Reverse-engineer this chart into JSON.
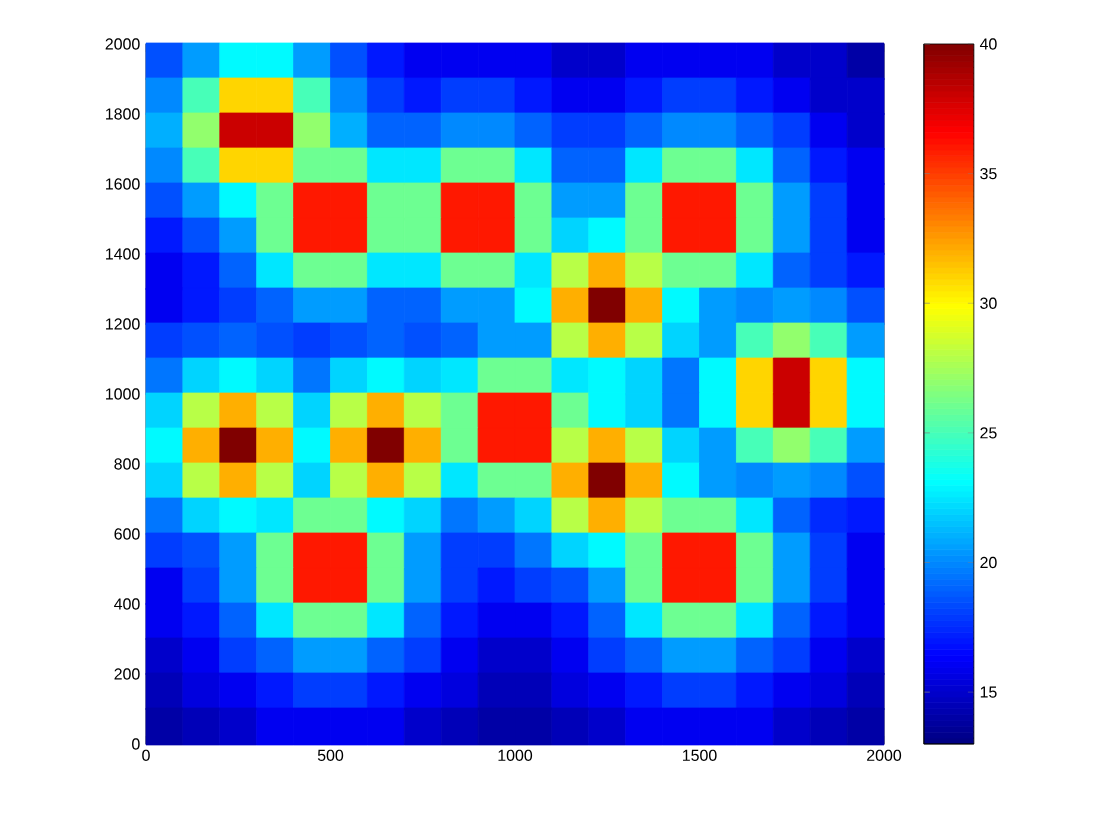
{
  "chart_data": {
    "type": "scatter",
    "marker": "square",
    "xlim": [
      0,
      2000
    ],
    "ylim": [
      0,
      2000
    ],
    "xticks": [
      0,
      500,
      1000,
      1500,
      2000
    ],
    "yticks": [
      0,
      200,
      400,
      600,
      800,
      1000,
      1200,
      1400,
      1600,
      1800,
      2000
    ],
    "clim": [
      13,
      40
    ],
    "cticks": [
      15,
      20,
      25,
      30,
      35,
      40
    ],
    "x": [
      50,
      150,
      250,
      350,
      450,
      550,
      650,
      750,
      850,
      950,
      1050,
      1150,
      1250,
      1350,
      1450,
      1550,
      1650,
      1750,
      1850,
      1950,
      50,
      150,
      250,
      350,
      450,
      550,
      650,
      750,
      850,
      950,
      1050,
      1150,
      1250,
      1350,
      1450,
      1550,
      1650,
      1750,
      1850,
      1950,
      50,
      150,
      250,
      350,
      450,
      550,
      650,
      750,
      850,
      950,
      1050,
      1150,
      1250,
      1350,
      1450,
      1550,
      1650,
      1750,
      1850,
      1950,
      50,
      150,
      250,
      350,
      450,
      550,
      650,
      750,
      850,
      950,
      1050,
      1150,
      1250,
      1350,
      1450,
      1550,
      1650,
      1750,
      1850,
      1950,
      50,
      150,
      250,
      350,
      450,
      550,
      650,
      750,
      850,
      950,
      1050,
      1150,
      1250,
      1350,
      1450,
      1550,
      1650,
      1750,
      1850,
      1950,
      50,
      150,
      250,
      350,
      450,
      550,
      650,
      750,
      850,
      950,
      1050,
      1150,
      1250,
      1350,
      1450,
      1550,
      1650,
      1750,
      1850,
      1950,
      50,
      150,
      250,
      350,
      450,
      550,
      650,
      750,
      850,
      950,
      1050,
      1150,
      1250,
      1350,
      1450,
      1550,
      1650,
      1750,
      1850,
      1950,
      50,
      150,
      250,
      350,
      450,
      550,
      650,
      750,
      850,
      950,
      1050,
      1150,
      1250,
      1350,
      1450,
      1550,
      1650,
      1750,
      1850,
      1950,
      50,
      150,
      250,
      350,
      450,
      550,
      650,
      750,
      850,
      950,
      1050,
      1150,
      1250,
      1350,
      1450,
      1550,
      1650,
      1750,
      1850,
      1950,
      50,
      150,
      250,
      350,
      450,
      550,
      650,
      750,
      850,
      950,
      1050,
      1150,
      1250,
      1350,
      1450,
      1550,
      1650,
      1750,
      1850,
      1950,
      50,
      150,
      250,
      350,
      450,
      550,
      650,
      750,
      850,
      950,
      1050,
      1150,
      1250,
      1350,
      1450,
      1550,
      1650,
      1750,
      1850,
      1950,
      50,
      150,
      250,
      350,
      450,
      550,
      650,
      750,
      850,
      950,
      1050,
      1150,
      1250,
      1350,
      1450,
      1550,
      1650,
      1750,
      1850,
      1950,
      50,
      150,
      250,
      350,
      450,
      550,
      650,
      750,
      850,
      950,
      1050,
      1150,
      1250,
      1350,
      1450,
      1550,
      1650,
      1750,
      1850,
      1950,
      50,
      150,
      250,
      350,
      450,
      550,
      650,
      750,
      850,
      950,
      1050,
      1150,
      1250,
      1350,
      1450,
      1550,
      1650,
      1750,
      1850,
      1950,
      50,
      150,
      250,
      350,
      450,
      550,
      650,
      750,
      850,
      950,
      1050,
      1150,
      1250,
      1350,
      1450,
      1550,
      1650,
      1750,
      1850,
      1950,
      50,
      150,
      250,
      350,
      450,
      550,
      650,
      750,
      850,
      950,
      1050,
      1150,
      1250,
      1350,
      1450,
      1550,
      1650,
      1750,
      1850,
      1950,
      50,
      150,
      250,
      350,
      450,
      550,
      650,
      750,
      850,
      950,
      1050,
      1150,
      1250,
      1350,
      1450,
      1550,
      1650,
      1750,
      1850,
      1950,
      50,
      150,
      250,
      350,
      450,
      550,
      650,
      750,
      850,
      950,
      1050,
      1150,
      1250,
      1350,
      1450,
      1550,
      1650,
      1750,
      1850,
      1950,
      50,
      150,
      250,
      350,
      450,
      550,
      650,
      750,
      850,
      950,
      1050,
      1150,
      1250,
      1350,
      1450,
      1550,
      1650,
      1750,
      1850,
      1950,
      50,
      150,
      250,
      350,
      450,
      550,
      650,
      750,
      850,
      950,
      1050,
      1150,
      1250,
      1350,
      1450,
      1550,
      1650,
      1750,
      1850,
      1950
    ],
    "values": [
      1950,
      1950,
      1950,
      1950,
      1950,
      1950,
      1950,
      1950,
      1950,
      1950,
      1950,
      1950,
      1950,
      1950,
      1950,
      1950,
      1950,
      1950,
      1950,
      1950,
      1850,
      1850,
      1850,
      1850,
      1850,
      1850,
      1850,
      1850,
      1850,
      1850,
      1850,
      1850,
      1850,
      1850,
      1850,
      1850,
      1850,
      1850,
      1850,
      1850,
      1750,
      1750,
      1750,
      1750,
      1750,
      1750,
      1750,
      1750,
      1750,
      1750,
      1750,
      1750,
      1750,
      1750,
      1750,
      1750,
      1750,
      1750,
      1750,
      1750,
      1650,
      1650,
      1650,
      1650,
      1650,
      1650,
      1650,
      1650,
      1650,
      1650,
      1650,
      1650,
      1650,
      1650,
      1650,
      1650,
      1650,
      1650,
      1650,
      1650,
      1550,
      1550,
      1550,
      1550,
      1550,
      1550,
      1550,
      1550,
      1550,
      1550,
      1550,
      1550,
      1550,
      1550,
      1550,
      1550,
      1550,
      1550,
      1550,
      1550,
      1450,
      1450,
      1450,
      1450,
      1450,
      1450,
      1450,
      1450,
      1450,
      1450,
      1450,
      1450,
      1450,
      1450,
      1450,
      1450,
      1450,
      1450,
      1450,
      1450,
      1350,
      1350,
      1350,
      1350,
      1350,
      1350,
      1350,
      1350,
      1350,
      1350,
      1350,
      1350,
      1350,
      1350,
      1350,
      1350,
      1350,
      1350,
      1350,
      1350,
      1250,
      1250,
      1250,
      1250,
      1250,
      1250,
      1250,
      1250,
      1250,
      1250,
      1250,
      1250,
      1250,
      1250,
      1250,
      1250,
      1250,
      1250,
      1250,
      1250,
      1150,
      1150,
      1150,
      1150,
      1150,
      1150,
      1150,
      1150,
      1150,
      1150,
      1150,
      1150,
      1150,
      1150,
      1150,
      1150,
      1150,
      1150,
      1150,
      1150,
      1050,
      1050,
      1050,
      1050,
      1050,
      1050,
      1050,
      1050,
      1050,
      1050,
      1050,
      1050,
      1050,
      1050,
      1050,
      1050,
      1050,
      1050,
      1050,
      1050,
      950,
      950,
      950,
      950,
      950,
      950,
      950,
      950,
      950,
      950,
      950,
      950,
      950,
      950,
      950,
      950,
      950,
      950,
      950,
      950,
      850,
      850,
      850,
      850,
      850,
      850,
      850,
      850,
      850,
      850,
      850,
      850,
      850,
      850,
      850,
      850,
      850,
      850,
      850,
      850,
      750,
      750,
      750,
      750,
      750,
      750,
      750,
      750,
      750,
      750,
      750,
      750,
      750,
      750,
      750,
      750,
      750,
      750,
      750,
      750,
      650,
      650,
      650,
      650,
      650,
      650,
      650,
      650,
      650,
      650,
      650,
      650,
      650,
      650,
      650,
      650,
      650,
      650,
      650,
      650,
      550,
      550,
      550,
      550,
      550,
      550,
      550,
      550,
      550,
      550,
      550,
      550,
      550,
      550,
      550,
      550,
      550,
      550,
      550,
      550,
      450,
      450,
      450,
      450,
      450,
      450,
      450,
      450,
      450,
      450,
      450,
      450,
      450,
      450,
      450,
      450,
      450,
      450,
      450,
      450,
      350,
      350,
      350,
      350,
      350,
      350,
      350,
      350,
      350,
      350,
      350,
      350,
      350,
      350,
      350,
      350,
      350,
      350,
      350,
      350,
      250,
      250,
      250,
      250,
      250,
      250,
      250,
      250,
      250,
      250,
      250,
      250,
      250,
      250,
      250,
      250,
      250,
      250,
      250,
      250,
      150,
      150,
      150,
      150,
      150,
      150,
      150,
      150,
      150,
      150,
      150,
      150,
      150,
      150,
      150,
      150,
      150,
      150,
      150,
      150,
      50,
      50,
      50,
      50,
      50,
      50,
      50,
      50,
      50,
      50,
      50,
      50,
      50,
      50,
      50,
      50,
      50,
      50,
      50,
      50
    ],
    "cvalues": [
      18.5,
      20.5,
      23,
      23,
      20.5,
      18.5,
      17,
      16,
      16,
      16,
      16,
      15,
      15,
      16,
      16,
      16,
      16,
      15,
      15,
      14,
      20,
      25,
      31,
      31,
      25,
      20,
      18,
      17,
      18,
      18,
      17,
      16,
      16,
      17,
      18,
      18,
      17,
      16,
      15,
      15,
      21,
      27,
      38,
      38,
      27,
      21,
      19,
      19,
      20,
      20,
      19,
      18,
      18,
      19,
      20,
      20,
      19,
      18,
      16,
      15,
      20,
      25,
      31,
      31,
      26,
      26,
      22.5,
      22.5,
      26,
      26,
      22.5,
      19,
      19,
      22.5,
      26,
      26,
      22.5,
      19,
      17,
      16,
      18.5,
      20.5,
      23,
      26,
      36,
      36,
      26,
      26,
      36,
      36,
      26,
      20.5,
      20.5,
      26,
      36,
      36,
      26,
      20.5,
      18,
      16,
      17,
      18.5,
      20.5,
      26,
      36,
      36,
      26,
      26,
      36,
      36,
      26,
      22,
      23,
      26,
      36,
      36,
      26,
      20.5,
      18,
      16,
      16,
      17,
      19,
      22.5,
      26,
      26,
      22.5,
      22.5,
      26,
      26,
      22.5,
      28,
      32,
      28,
      26,
      26,
      22.5,
      19,
      18,
      17,
      16,
      17,
      18,
      19,
      20.5,
      20.5,
      19,
      19,
      20.5,
      20.5,
      23,
      32,
      40,
      32,
      23,
      20.5,
      20,
      20.5,
      20,
      18.5,
      18,
      18.5,
      19,
      18.5,
      18,
      18.5,
      19,
      18.5,
      19,
      20.5,
      20.5,
      28,
      32,
      28,
      22,
      20.5,
      25,
      27,
      25,
      20.5,
      19.5,
      22,
      23,
      22,
      19.5,
      22,
      23,
      22,
      22.5,
      26,
      26,
      22.5,
      23,
      22,
      19.5,
      23,
      31,
      38,
      31,
      23,
      22,
      28,
      32,
      28,
      22,
      28,
      32,
      28,
      26,
      36,
      36,
      26,
      23,
      22,
      19.5,
      23,
      31,
      38,
      31,
      23,
      23,
      32,
      40,
      32,
      23,
      32,
      40,
      32,
      26,
      36,
      36,
      28,
      32,
      28,
      22,
      20.5,
      25,
      27,
      25,
      20.5,
      22,
      28,
      32,
      28,
      22,
      28,
      32,
      28,
      22.5,
      26,
      26,
      32,
      40,
      32,
      23,
      20.5,
      20,
      20.5,
      20,
      18.5,
      19.5,
      22,
      23,
      22.5,
      26,
      26,
      23,
      22,
      19.5,
      20.5,
      22,
      28,
      32,
      28,
      26,
      26,
      22.5,
      19,
      17.5,
      17,
      18,
      18.5,
      20.5,
      26,
      36,
      36,
      26,
      20.5,
      18,
      18,
      19.5,
      22,
      23,
      26,
      36,
      36,
      26,
      20.5,
      18,
      16,
      16,
      18,
      20.5,
      26,
      36,
      36,
      26,
      20.5,
      18,
      17,
      18,
      18.5,
      20.5,
      26,
      36,
      36,
      26,
      20.5,
      18,
      16,
      16,
      17,
      19,
      22.5,
      26,
      26,
      22.5,
      19,
      17,
      16,
      16,
      17,
      19,
      22.5,
      26,
      26,
      22.5,
      19,
      17,
      16,
      15,
      16,
      18,
      19,
      20.5,
      20.5,
      19,
      18,
      16,
      15,
      15,
      16,
      18,
      19,
      20.5,
      20.5,
      19,
      18,
      16,
      15,
      14.5,
      15.5,
      16,
      17,
      18,
      18,
      17,
      16,
      15.5,
      14.5,
      14.5,
      15.5,
      16,
      17,
      18,
      18,
      17,
      16,
      15.5,
      14.5,
      14,
      14.5,
      15,
      16,
      16,
      16,
      16,
      15,
      14.5,
      14,
      14,
      14.5,
      15,
      16,
      16,
      16,
      16,
      15,
      14.5,
      14
    ]
  }
}
